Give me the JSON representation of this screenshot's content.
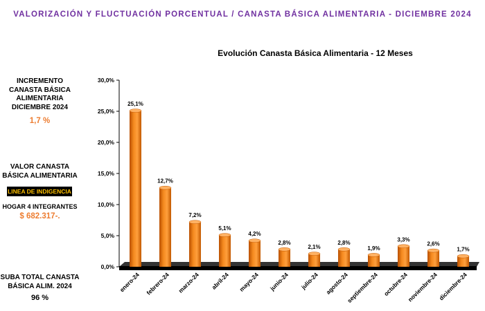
{
  "header": {
    "title": "VALORIZACIÓN Y FLUCTUACIÓN PORCENTUAL /  CANASTA BÁSICA ALIMENTARIA - DICIEMBRE 2024"
  },
  "left_panel": {
    "increment_label": [
      "INCREMENTO",
      "CANASTA BÁSICA",
      "ALIMENTARIA",
      "DICIEMBRE 2024"
    ],
    "increment_value": "1,7 %",
    "value_label": [
      "VALOR CANASTA",
      "BÁSICA ALIMENTARIA"
    ],
    "badge": "LINEA DE INDIGENCIA",
    "household": "HOGAR 4 INTEGRANTES",
    "price": "$ 682.317-.",
    "total_label": [
      "SUBA TOTAL CANASTA",
      "BÁSICA ALIM. 2024"
    ],
    "total_value": "96 %"
  },
  "colors": {
    "header": "#7030a0",
    "accent": "#ed7d31",
    "badge_bg": "#000000",
    "badge_text": "#ffc000",
    "bar": "#f07d1a"
  },
  "chart_data": {
    "type": "bar",
    "title": "Evolución Canasta Básica Alimentaria - 12 Meses",
    "categories": [
      "enero-24",
      "febrero-24",
      "marzo-24",
      "abril-24",
      "mayo-24",
      "junio-24",
      "julio-24",
      "agosto-24",
      "septiembre-24",
      "octubre-24",
      "noviembre-24",
      "diciembre-24"
    ],
    "values": [
      25.1,
      12.7,
      7.2,
      5.1,
      4.2,
      2.8,
      2.1,
      2.8,
      1.9,
      3.3,
      2.6,
      1.7
    ],
    "value_labels": [
      "25,1%",
      "12,7%",
      "7,2%",
      "5,1%",
      "4,2%",
      "2,8%",
      "2,1%",
      "2,8%",
      "1,9%",
      "3,3%",
      "2,6%",
      "1,7%"
    ],
    "ylim": [
      0,
      30
    ],
    "yticks": [
      0,
      5,
      10,
      15,
      20,
      25,
      30
    ],
    "ytick_labels": [
      "0,0%",
      "5,0%",
      "10,0%",
      "15,0%",
      "20,0%",
      "25,0%",
      "30,0%"
    ],
    "xlabel": "",
    "ylabel": "",
    "grid": false,
    "legend": "none"
  }
}
